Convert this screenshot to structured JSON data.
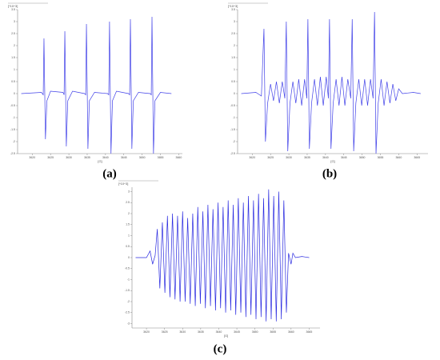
{
  "chart_data": [
    {
      "type": "line",
      "title": "(a)",
      "ylabel": "[*10^3]",
      "xlabel": "[G]",
      "color": "#4040e8",
      "xlim": [
        3616,
        3661
      ],
      "xticks": [
        3620,
        3625,
        3630,
        3635,
        3640,
        3645,
        3650,
        3655,
        3660
      ],
      "ylim": [
        -2.5,
        3.5
      ],
      "yticks": [
        -2.5,
        -2,
        -1.5,
        -1,
        -0.5,
        0,
        0.5,
        1,
        1.5,
        2,
        2.5,
        3,
        3.5
      ],
      "x": [
        3617,
        3622.5,
        3623.0,
        3623.2,
        3623.6,
        3624.0,
        3625,
        3628.4,
        3628.7,
        3628.9,
        3629.3,
        3629.7,
        3631,
        3634.3,
        3634.6,
        3634.8,
        3635.2,
        3635.6,
        3637,
        3640.6,
        3640.9,
        3641.1,
        3641.5,
        3641.9,
        3643,
        3646.3,
        3646.6,
        3646.8,
        3647.2,
        3647.6,
        3649,
        3652.2,
        3652.5,
        3652.7,
        3653.1,
        3653.5,
        3655,
        3658
      ],
      "values": [
        0,
        0.05,
        -0.05,
        2.3,
        -1.9,
        -0.3,
        0.1,
        0.05,
        -0.05,
        2.6,
        -2.2,
        -0.3,
        0.1,
        0,
        -0.05,
        2.9,
        -2.3,
        -0.3,
        0.05,
        0,
        -0.05,
        3.0,
        -2.5,
        -0.3,
        0.1,
        0,
        -0.05,
        3.1,
        -2.3,
        -0.3,
        0.05,
        0,
        -0.05,
        3.2,
        -2.5,
        -0.3,
        0.05,
        0
      ]
    },
    {
      "type": "line",
      "title": "(b)",
      "ylabel": "[*10^3]",
      "xlabel": "[G]",
      "color": "#4040e8",
      "xlim": [
        3616,
        3668
      ],
      "xticks": [
        3620,
        3625,
        3630,
        3635,
        3640,
        3645,
        3650,
        3655,
        3660,
        3665
      ],
      "ylim": [
        -2.5,
        3.5
      ],
      "yticks": [
        -2.5,
        -2,
        -1.5,
        -1,
        -0.5,
        0,
        0.5,
        1,
        1.5,
        2,
        2.5,
        3,
        3.5
      ],
      "x": [
        3617,
        3621,
        3622.5,
        3623.2,
        3623.6,
        3624.2,
        3625.0,
        3625.8,
        3626.6,
        3627.4,
        3628.2,
        3628.9,
        3629.3,
        3629.7,
        3630.3,
        3631.1,
        3631.9,
        3632.7,
        3633.5,
        3634.3,
        3634.9,
        3635.2,
        3635.6,
        3636.2,
        3637.0,
        3637.8,
        3638.6,
        3639.4,
        3640.2,
        3640.8,
        3641.1,
        3641.5,
        3642.1,
        3642.9,
        3643.7,
        3644.5,
        3645.3,
        3646.1,
        3646.9,
        3647.3,
        3647.7,
        3648.3,
        3649.1,
        3649.9,
        3650.7,
        3651.5,
        3652.3,
        3653.0,
        3653.4,
        3653.8,
        3654.4,
        3655.2,
        3656.0,
        3656.8,
        3657.6,
        3658.4,
        3659.2,
        3660.0,
        3661,
        3664,
        3666
      ],
      "values": [
        0,
        0.05,
        -0.1,
        2.7,
        -2.0,
        -0.4,
        0.4,
        -0.3,
        0.5,
        -0.4,
        0.5,
        -0.2,
        3.0,
        -2.4,
        -0.4,
        0.5,
        -0.4,
        0.6,
        -0.5,
        0.6,
        -0.2,
        3.1,
        -2.3,
        -0.4,
        0.6,
        -0.5,
        0.7,
        -0.5,
        0.7,
        -0.2,
        3.1,
        -2.3,
        -0.4,
        0.6,
        -0.5,
        0.7,
        -0.5,
        0.6,
        -0.2,
        3.1,
        -2.4,
        -0.4,
        0.6,
        -0.5,
        0.6,
        -0.5,
        0.6,
        -0.2,
        3.4,
        -2.5,
        -0.4,
        0.6,
        -0.5,
        0.5,
        -0.4,
        0.4,
        -0.3,
        0.2,
        0,
        0.05,
        0
      ]
    },
    {
      "type": "line",
      "title": "(c)",
      "ylabel": "[*10^3]",
      "xlabel": "[G]",
      "color": "#2a2ae0",
      "xlim": [
        3616,
        3668
      ],
      "xticks": [
        3620,
        3625,
        3630,
        3635,
        3640,
        3645,
        3650,
        3655,
        3660,
        3665
      ],
      "ylim": [
        -3.2,
        3.2
      ],
      "yticks": [
        -3,
        -2.5,
        -2,
        -1.5,
        -1,
        -0.5,
        0,
        0.5,
        1,
        1.5,
        2,
        2.5,
        3
      ],
      "x": [
        3617,
        3620,
        3621,
        3621.7,
        3622.4,
        3623.0,
        3623.7,
        3624.4,
        3625.1,
        3625.8,
        3626.5,
        3627.2,
        3627.9,
        3628.6,
        3629.3,
        3630.0,
        3630.7,
        3631.4,
        3632.1,
        3632.8,
        3633.5,
        3634.2,
        3634.9,
        3635.6,
        3636.3,
        3637.0,
        3637.7,
        3638.4,
        3639.1,
        3639.8,
        3640.5,
        3641.2,
        3641.9,
        3642.6,
        3643.3,
        3644.0,
        3644.7,
        3645.4,
        3646.1,
        3646.8,
        3647.5,
        3648.2,
        3648.9,
        3649.6,
        3650.3,
        3651.0,
        3651.7,
        3652.4,
        3653.1,
        3653.8,
        3654.5,
        3655.2,
        3655.9,
        3656.6,
        3657.3,
        3658.0,
        3658.7,
        3659.3,
        3660.0,
        3660.5,
        3661.2,
        3663,
        3665
      ],
      "values": [
        0,
        0,
        0.3,
        -0.3,
        0.1,
        1.3,
        -1.4,
        1.6,
        -1.6,
        1.9,
        -1.8,
        2.0,
        -1.9,
        1.9,
        -2.0,
        2.1,
        -2.0,
        1.8,
        -2.1,
        2.0,
        -2.2,
        2.3,
        -2.1,
        2.1,
        -2.3,
        2.4,
        -2.2,
        2.2,
        -2.4,
        2.5,
        -2.3,
        2.3,
        -2.5,
        2.6,
        -2.4,
        2.4,
        -2.6,
        2.7,
        -2.5,
        2.5,
        -2.7,
        2.8,
        -2.6,
        2.6,
        -2.8,
        2.9,
        -2.7,
        2.7,
        -2.9,
        3.1,
        -2.8,
        2.8,
        -2.9,
        3.0,
        -2.8,
        2.6,
        -2.5,
        0.2,
        -0.3,
        0.2,
        0,
        0.05,
        0
      ]
    }
  ]
}
